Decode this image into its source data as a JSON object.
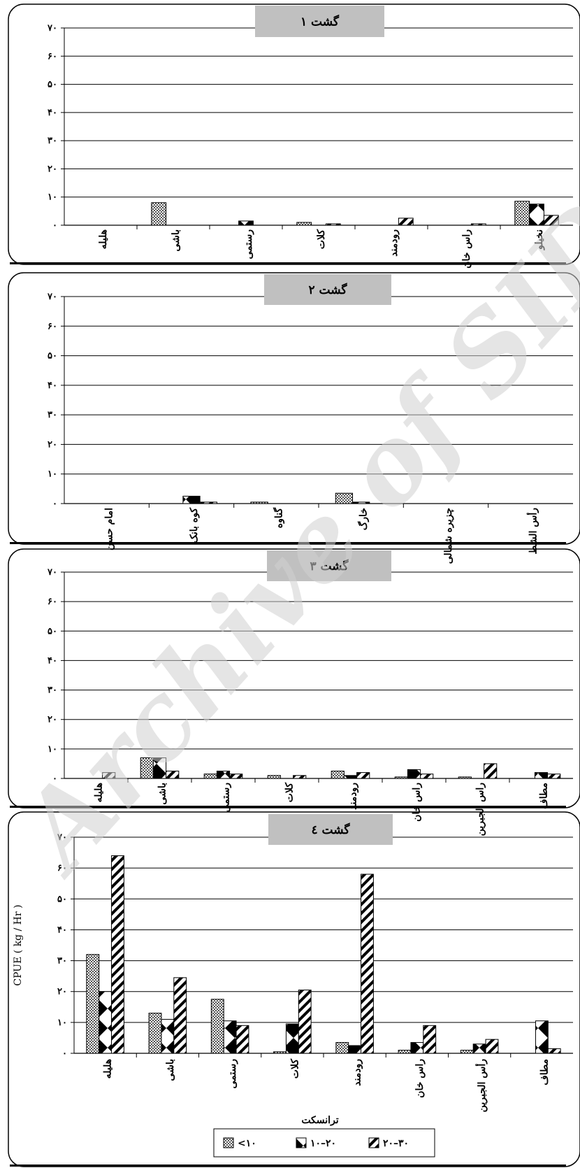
{
  "watermark": "Archive of SID",
  "legend": [
    "<۱۰",
    "۱۰–۲۰",
    "۲۰–۳۰"
  ],
  "chart_data": [
    {
      "type": "bar",
      "title": "گشت ۱",
      "categories": [
        "هلیله",
        "باشی",
        "رستمی",
        "کلات",
        "رودمند",
        "راس خان",
        "نخیلو"
      ],
      "series": [
        {
          "name": "<۱۰",
          "values": [
            0,
            8,
            0,
            1,
            0,
            0,
            8.5
          ]
        },
        {
          "name": "۱۰–۲۰",
          "values": [
            0,
            0,
            1.5,
            0,
            0,
            0,
            7.5
          ]
        },
        {
          "name": "۲۰–۳۰",
          "values": [
            0,
            0,
            0,
            0.5,
            2.5,
            0.5,
            3.5
          ]
        }
      ],
      "ylim": [
        0,
        70
      ],
      "yticks": [
        "۰",
        "۱۰",
        "۲۰",
        "۳۰",
        "۴۰",
        "۵۰",
        "۶۰",
        "۷۰"
      ],
      "ylabel": "",
      "xlabel": ""
    },
    {
      "type": "bar",
      "title": "گشت ۲",
      "categories": [
        "امام حسن",
        "کوه بانک",
        "گناوه",
        "خارگ",
        "چزیره شمالی",
        "رأس الشط"
      ],
      "series": [
        {
          "name": "<۱۰",
          "values": [
            0,
            0,
            0.5,
            3.5,
            0,
            0
          ]
        },
        {
          "name": "۱۰–۲۰",
          "values": [
            0,
            2.5,
            0,
            0.5,
            0,
            0
          ]
        },
        {
          "name": "۲۰–۳۰",
          "values": [
            0,
            0.5,
            0,
            0,
            0,
            0
          ]
        }
      ],
      "ylim": [
        0,
        70
      ],
      "yticks": [
        "۰",
        "۱۰",
        "۲۰",
        "۳۰",
        "۴۰",
        "۵۰",
        "۶۰",
        "۷۰"
      ],
      "ylabel": "",
      "xlabel": ""
    },
    {
      "type": "bar",
      "title": "گشت ۳",
      "categories": [
        "هلیله",
        "باشی",
        "رستمی",
        "کلات",
        "رودمند",
        "راس خان",
        "راس الجبرین",
        "مطاف"
      ],
      "series": [
        {
          "name": "<۱۰",
          "values": [
            0,
            7,
            1.5,
            1,
            2.5,
            0.5,
            0.5,
            0
          ]
        },
        {
          "name": "۱۰–۲۰",
          "values": [
            0,
            7,
            2.5,
            0,
            1,
            3,
            0,
            2
          ]
        },
        {
          "name": "۲۰–۳۰",
          "values": [
            2,
            2.5,
            1.5,
            1,
            2,
            1.5,
            5,
            1.5
          ]
        }
      ],
      "ylim": [
        0,
        70
      ],
      "yticks": [
        "۰",
        "۱۰",
        "۲۰",
        "۳۰",
        "۴۰",
        "۵۰",
        "۶۰",
        "۷۰"
      ],
      "ylabel": "",
      "xlabel": ""
    },
    {
      "type": "bar",
      "title": "گشت ٤",
      "categories": [
        "هلیله",
        "باشی",
        "رستمی",
        "کلات",
        "رودمند",
        "راس خان",
        "رأس الجبرین",
        "مطاف"
      ],
      "series": [
        {
          "name": "<۱۰",
          "values": [
            32,
            13,
            17.5,
            0.5,
            3.5,
            1,
            1,
            0
          ]
        },
        {
          "name": "۱۰–۲۰",
          "values": [
            20,
            11,
            10.5,
            9.5,
            2.5,
            3.5,
            3,
            10.5
          ]
        },
        {
          "name": "۲۰–۳۰",
          "values": [
            64,
            24.5,
            9,
            20.5,
            58,
            9,
            4.5,
            1.5
          ]
        }
      ],
      "ylim": [
        0,
        70
      ],
      "yticks": [
        "۰",
        "۱۰",
        "۲۰",
        "۳۰",
        "۴۰",
        "۵۰",
        "۶۰",
        "۷۰"
      ],
      "ylabel": "CPUE ( kg / Hr )",
      "xlabel": "ترانسکت"
    }
  ]
}
